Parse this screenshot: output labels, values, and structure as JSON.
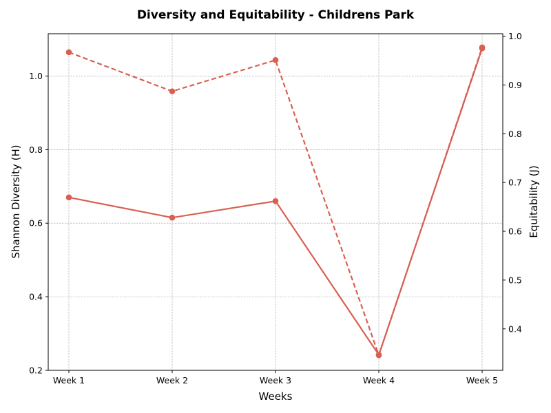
{
  "chart_data": {
    "type": "line",
    "title": "Diversity and Equitability - Childrens Park",
    "xlabel": "Weeks",
    "ylabel": "Shannon Diversity (H)",
    "y2label": "Equitability (J)",
    "categories": [
      "Week 1",
      "Week 2",
      "Week 3",
      "Week 4",
      "Week 5"
    ],
    "ylim": [
      0.2,
      1.115
    ],
    "y2lim": [
      0.315,
      1.005
    ],
    "yticks": [
      0.2,
      0.4,
      0.6,
      0.8,
      1.0
    ],
    "y2ticks": [
      0.4,
      0.5,
      0.6,
      0.7,
      0.8,
      0.9,
      1.0
    ],
    "grid": true,
    "series": [
      {
        "axis": "left",
        "style": "solid",
        "color": "#d95f52",
        "values": [
          0.67,
          0.615,
          0.66,
          0.242,
          1.075
        ]
      },
      {
        "axis": "right",
        "style": "dashed",
        "color": "#d95f52",
        "values": [
          0.967,
          0.887,
          0.951,
          0.346,
          0.977
        ]
      }
    ]
  }
}
